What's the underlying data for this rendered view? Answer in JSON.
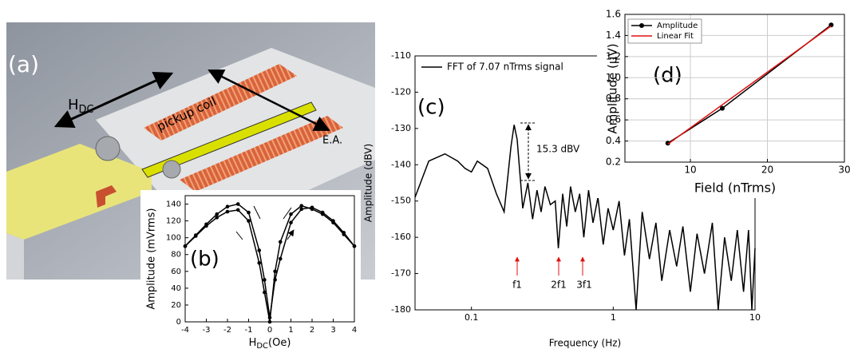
{
  "panel_a": {
    "label": "(a)",
    "hdc": {
      "text": "H",
      "subscript": "DC"
    },
    "pickup_coil": "pickup coil",
    "easy_axis": "E.A."
  },
  "chart_data": [
    {
      "type": "line",
      "annotations": [
        "(b)"
      ],
      "ylabel": "Amplitude (mVrms)",
      "xlabel": {
        "text": "H",
        "subscript": "DC",
        "suffix": "(Oe)"
      },
      "x": [
        -4,
        -3.5,
        -3,
        -2.5,
        -2,
        -1.5,
        -1,
        -0.5,
        -0.25,
        0,
        0.25,
        0.5,
        1,
        1.5,
        2,
        2.5,
        3,
        3.5,
        4
      ],
      "series": [
        {
          "color": "#000000",
          "marker": true,
          "values": [
            90,
            103,
            116,
            128,
            137,
            140,
            130,
            85,
            50,
            5,
            50,
            75,
            118,
            134,
            136,
            130,
            120,
            106,
            90
          ]
        },
        {
          "color": "#000000",
          "marker": true,
          "values": [
            90,
            102,
            114,
            124,
            131,
            133,
            120,
            70,
            35,
            0,
            60,
            95,
            128,
            138,
            134,
            128,
            118,
            104,
            90
          ]
        }
      ],
      "xlim": [
        -4,
        4
      ],
      "xticks": [
        -4,
        -3,
        -2,
        -1,
        0,
        1,
        2,
        3,
        4
      ],
      "ylim": [
        0,
        150
      ],
      "yticks": [
        0,
        20,
        40,
        60,
        80,
        100,
        120,
        140
      ],
      "grid": false
    },
    {
      "type": "line",
      "annotations": [
        "(c)",
        "15.3 dBV",
        "f1",
        "2f1",
        "3f1"
      ],
      "ylabel": "Amplitude (dBV)",
      "xlabel": "Frequency (Hz)",
      "xlog": true,
      "legend": "upper left",
      "x": [
        0.04,
        0.05,
        0.065,
        0.08,
        0.09,
        0.1,
        0.11,
        0.13,
        0.15,
        0.17,
        0.19,
        0.2,
        0.21,
        0.23,
        0.25,
        0.27,
        0.29,
        0.31,
        0.33,
        0.36,
        0.39,
        0.41,
        0.44,
        0.47,
        0.5,
        0.54,
        0.58,
        0.62,
        0.67,
        0.72,
        0.78,
        0.85,
        0.92,
        1.0,
        1.1,
        1.2,
        1.3,
        1.45,
        1.6,
        1.8,
        2.0,
        2.2,
        2.5,
        2.8,
        3.1,
        3.5,
        3.9,
        4.4,
        5.0,
        5.5,
        6.1,
        6.8,
        7.5,
        8.3,
        9.0,
        9.5,
        10
      ],
      "series": [
        {
          "name": "FFT of 7.07 nTrms signal",
          "color": "#000000",
          "marker": false,
          "values": [
            -149,
            -139,
            -137,
            -139,
            -141,
            -142,
            -139,
            -141,
            -148,
            -153,
            -135,
            -129,
            -133,
            -152,
            -145,
            -155,
            -147,
            -153,
            -146,
            -151,
            -150,
            -163,
            -148,
            -157,
            -146,
            -153,
            -148,
            -160,
            -147,
            -156,
            -149,
            -162,
            -152,
            -158,
            -150,
            -165,
            -155,
            -180,
            -153,
            -166,
            -156,
            -172,
            -158,
            -168,
            -157,
            -175,
            -159,
            -170,
            -156,
            -180,
            -160,
            -172,
            -158,
            -175,
            -158,
            -180,
            -163
          ]
        }
      ],
      "xlim": [
        0.04,
        10
      ],
      "xticks": [
        0.1,
        1,
        10
      ],
      "ylim": [
        -180,
        -110
      ],
      "yticks": [
        -180,
        -170,
        -160,
        -150,
        -140,
        -130,
        -120,
        -110
      ],
      "grid": false
    },
    {
      "type": "line",
      "annotations": [
        "(d)"
      ],
      "ylabel": "Amplitude (μV)",
      "xlabel": "Field (nTrms)",
      "legend": "upper left",
      "series": [
        {
          "name": "Amplitude",
          "color": "#000000",
          "marker": true,
          "x": [
            7.07,
            14.14,
            28.28
          ],
          "values": [
            0.38,
            0.71,
            1.5
          ]
        },
        {
          "name": "Linear Fit",
          "color": "#e01010",
          "marker": false,
          "x": [
            7.07,
            28.28
          ],
          "values": [
            0.37,
            1.49
          ]
        }
      ],
      "xlim": [
        1.5,
        30
      ],
      "xticks": [
        10,
        20,
        30
      ],
      "ylim": [
        0.2,
        1.6
      ],
      "yticks": [
        0.2,
        0.4,
        0.6,
        0.8,
        {
          "value": 1,
          "label": "1.0"
        },
        1.2,
        1.4,
        1.6
      ],
      "grid": true
    }
  ]
}
